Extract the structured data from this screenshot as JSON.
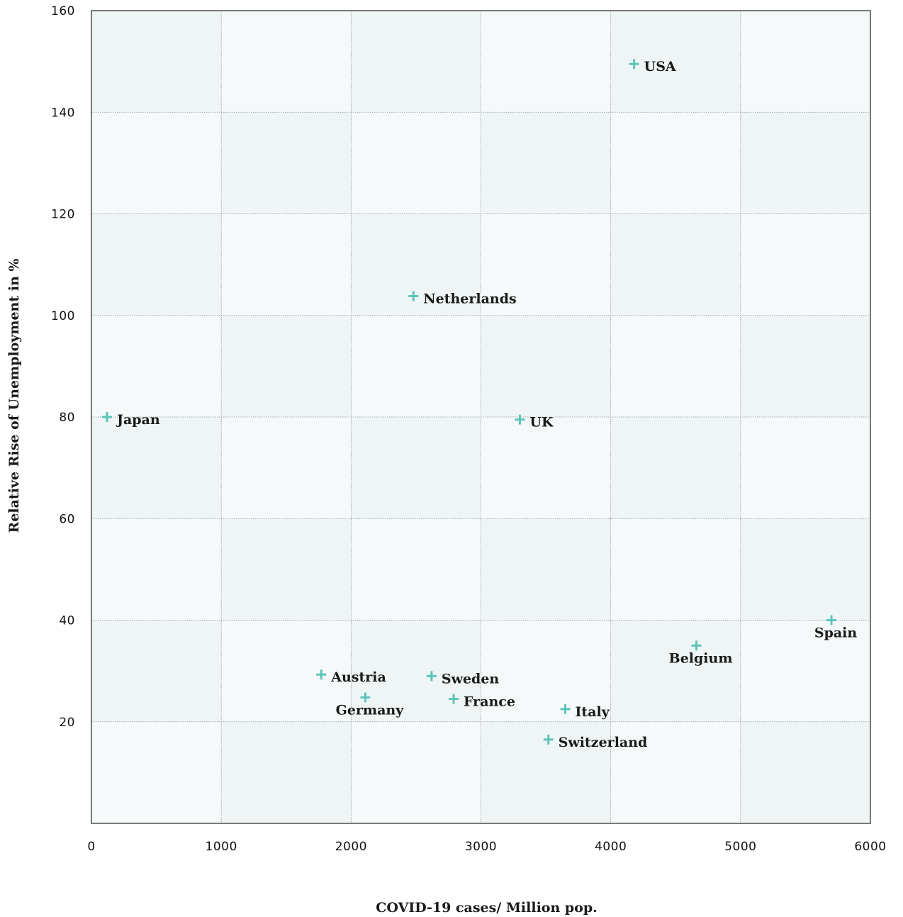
{
  "chart_data": {
    "type": "scatter",
    "xlabel": "COVID-19 cases/ Million pop.",
    "ylabel": "Relative Rise of Unemployment in %",
    "xlim": [
      0,
      6000
    ],
    "ylim": [
      0,
      160
    ],
    "xticks": [
      0,
      1000,
      2000,
      3000,
      4000,
      5000,
      6000
    ],
    "yticks": [
      20,
      40,
      60,
      80,
      100,
      120,
      140,
      160
    ],
    "grid": true,
    "marker_color": "#5cc4b8",
    "points": [
      {
        "label": "USA",
        "x": 4180,
        "y": 149.5,
        "label_pos": "right"
      },
      {
        "label": "Netherlands",
        "x": 2480,
        "y": 103.8,
        "label_pos": "right"
      },
      {
        "label": "Japan",
        "x": 120,
        "y": 80.0,
        "label_pos": "right"
      },
      {
        "label": "UK",
        "x": 3300,
        "y": 79.5,
        "label_pos": "right"
      },
      {
        "label": "Spain",
        "x": 5700,
        "y": 40.0,
        "label_pos": "below"
      },
      {
        "label": "Belgium",
        "x": 4660,
        "y": 35.0,
        "label_pos": "below"
      },
      {
        "label": "Austria",
        "x": 1770,
        "y": 29.3,
        "label_pos": "right"
      },
      {
        "label": "Sweden",
        "x": 2620,
        "y": 29.0,
        "label_pos": "right"
      },
      {
        "label": "Germany",
        "x": 2110,
        "y": 24.8,
        "label_pos": "below"
      },
      {
        "label": "France",
        "x": 2790,
        "y": 24.5,
        "label_pos": "right"
      },
      {
        "label": "Italy",
        "x": 3650,
        "y": 22.5,
        "label_pos": "right"
      },
      {
        "label": "Switzerland",
        "x": 3520,
        "y": 16.5,
        "label_pos": "right"
      }
    ]
  }
}
